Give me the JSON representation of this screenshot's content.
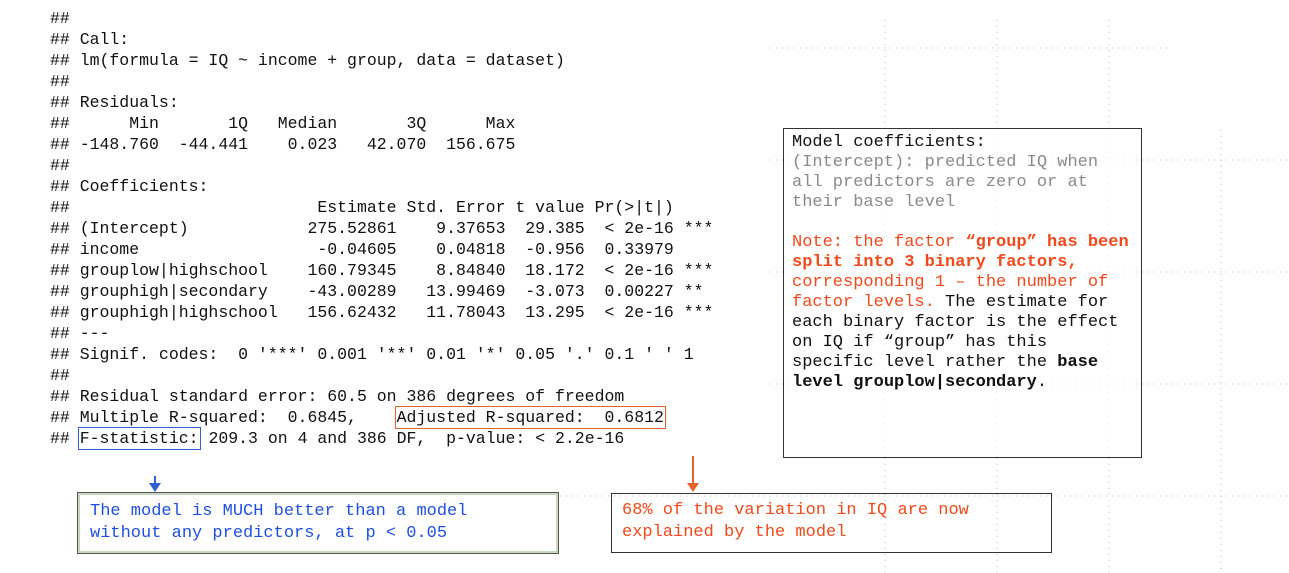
{
  "r_output": {
    "lines": [
      "##",
      "## Call:",
      "## lm(formula = IQ ~ income + group, data = dataset)",
      "##",
      "## Residuals:",
      "##      Min       1Q   Median       3Q      Max",
      "## -148.760  -44.441    0.023   42.070  156.675",
      "##",
      "## Coefficients:",
      "##                         Estimate Std. Error t value Pr(>|t|)",
      "## (Intercept)            275.52861    9.37653  29.385  < 2e-16 ***",
      "## income                  -0.04605    0.04818  -0.956  0.33979",
      "## grouplow|highschool    160.79345    8.84840  18.172  < 2e-16 ***",
      "## grouphigh|secondary    -43.00289   13.99469  -3.073  0.00227 **",
      "## grouphigh|highschool   156.62432   11.78043  13.295  < 2e-16 ***",
      "## ---",
      "## Signif. codes:  0 '***' 0.001 '**' 0.01 '*' 0.05 '.' 0.1 ' ' 1",
      "##",
      "## Residual standard error: 60.5 on 386 degrees of freedom",
      {
        "before": "## Multiple R-squared:  0.6845,    ",
        "boxed": "Adjusted R-squared:  0.6812",
        "after": ""
      },
      {
        "before": "## ",
        "boxed": "F-statistic:",
        "after": " 209.3 on 4 and 386 DF,  p-value: < 2.2e-16"
      }
    ]
  },
  "coefficients_note": {
    "paragraphs": [
      [
        {
          "text": "Model coefficients:",
          "style": "black"
        }
      ],
      [
        {
          "text": "(Intercept): predicted IQ when all predictors are zero or at their base level",
          "style": "gray"
        }
      ],
      [
        {
          "text": "Note: the factor ",
          "style": "red"
        },
        {
          "text": "“group” has been split into 3 binary factors,",
          "style": "red-bold"
        },
        {
          "text": " corresponding 1 – the number of factor levels.",
          "style": "red"
        },
        {
          "text": " The estimate for each binary factor is the effect on IQ if “group” has this specific level rather the ",
          "style": "black"
        },
        {
          "text": "base level grouplow|secondary",
          "style": "bold"
        },
        {
          "text": ".",
          "style": "black"
        }
      ]
    ]
  },
  "fstat_note": {
    "text": "The model is MUCH better than a model without any predictors, at p < 0.05"
  },
  "rsq_note": {
    "text": "68% of the variation in IQ are now explained by the model"
  }
}
